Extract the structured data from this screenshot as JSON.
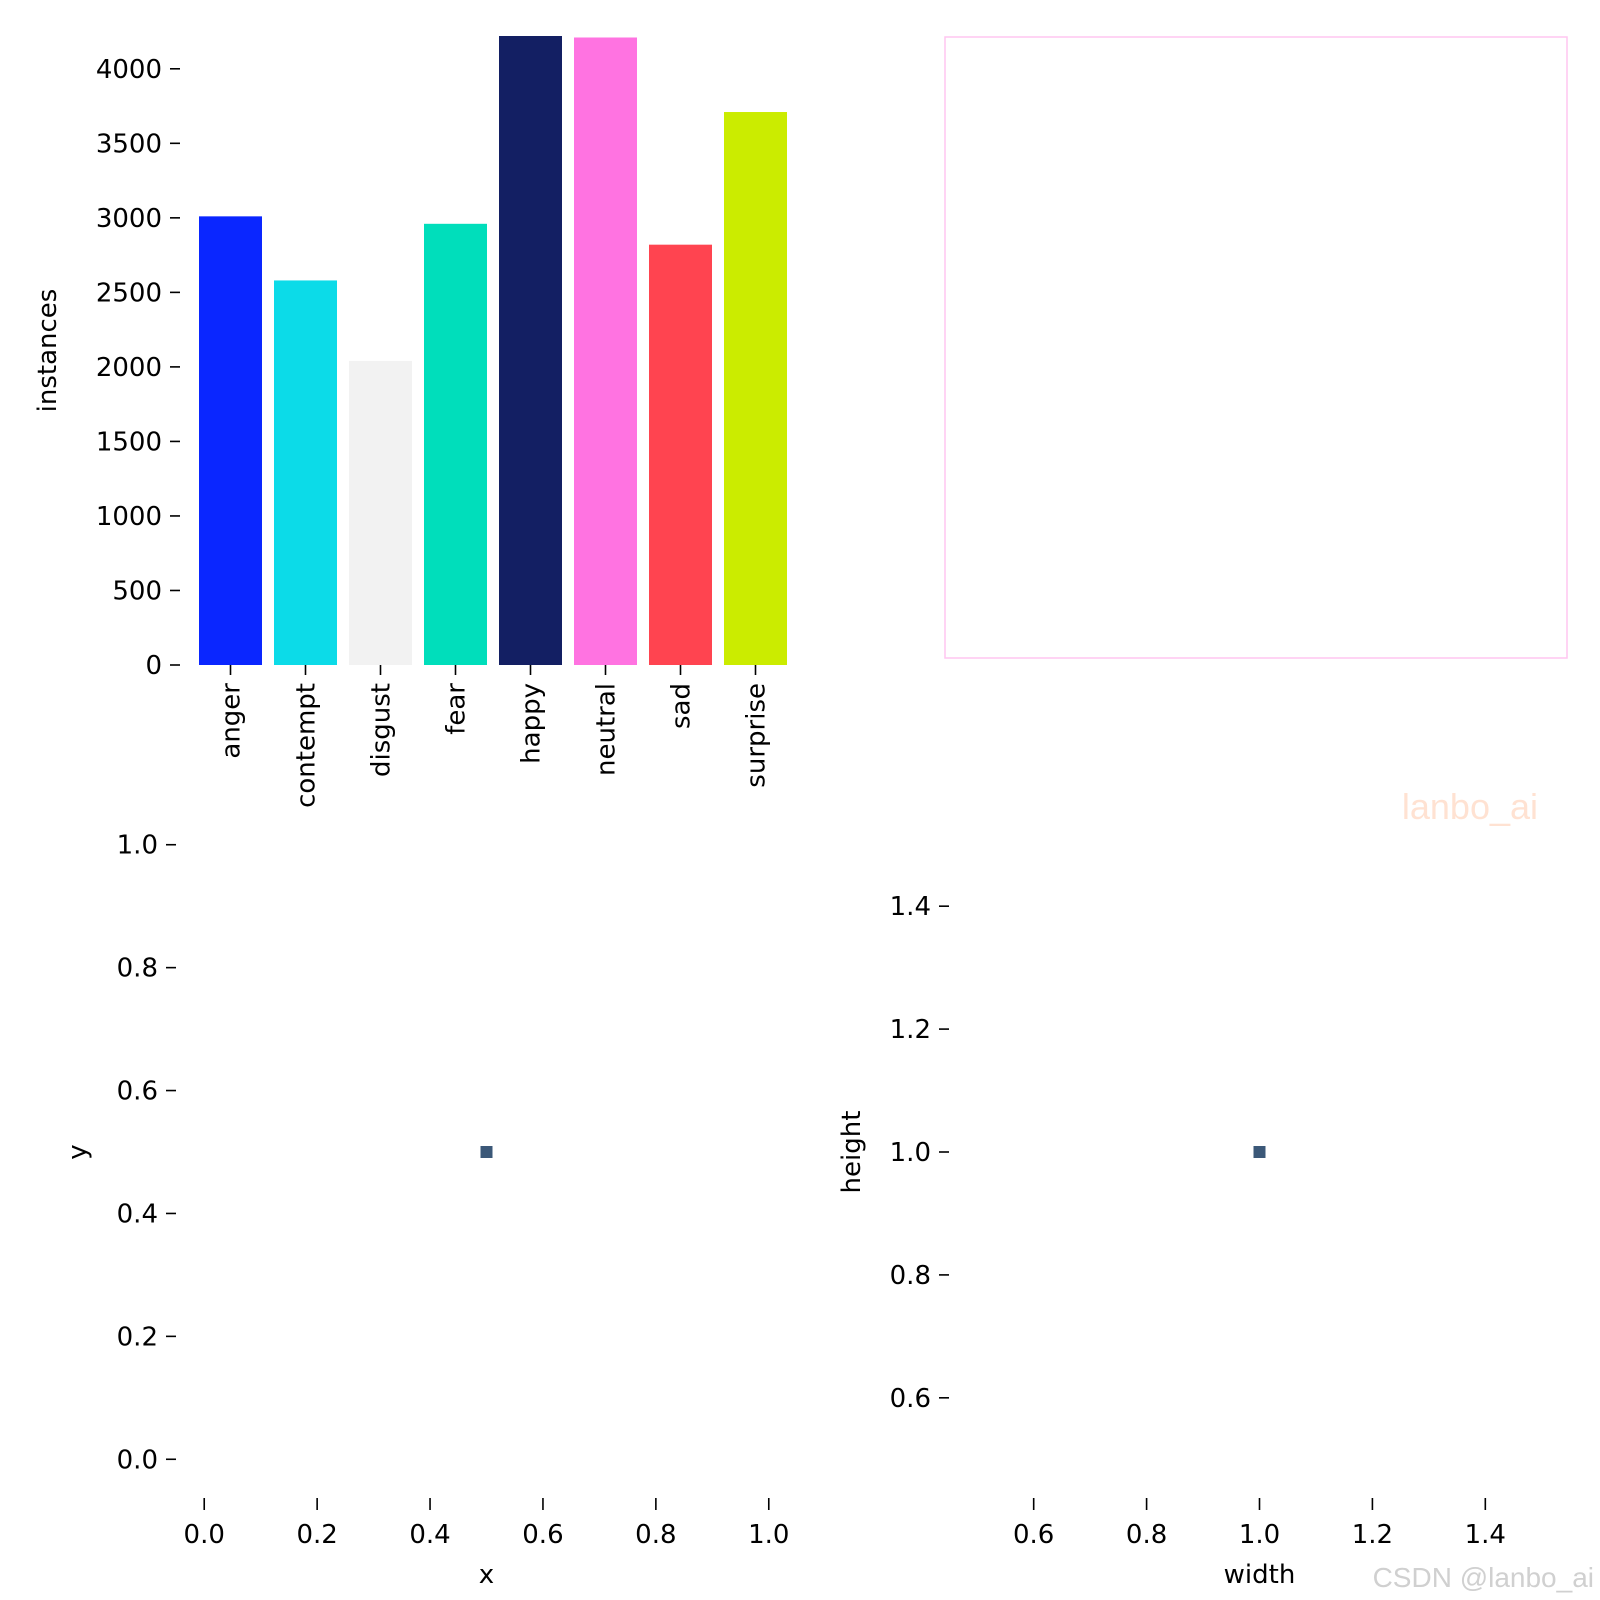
{
  "chart_data": [
    {
      "type": "bar",
      "categories": [
        "anger",
        "contempt",
        "disgust",
        "fear",
        "happy",
        "neutral",
        "sad",
        "surprise"
      ],
      "values": [
        3010,
        2580,
        2040,
        2960,
        4220,
        4210,
        2820,
        3710
      ],
      "colors": [
        "#0a26ff",
        "#0cdbe8",
        "#f2f2f2",
        "#00debb",
        "#131f63",
        "#ff73e1",
        "#ff4450",
        "#cbec00"
      ],
      "xlabel": "",
      "ylabel": "instances",
      "ylim": [
        0,
        4220
      ],
      "yticks": [
        "0",
        "500",
        "1000",
        "1500",
        "2000",
        "2500",
        "3000",
        "3500",
        "4000"
      ],
      "grid": false
    },
    {
      "type": "image",
      "note_border_color": "#ffc6f0"
    },
    {
      "type": "heatmap",
      "points": [
        {
          "x": 0.5,
          "y": 0.5
        }
      ],
      "xlabel": "x",
      "ylabel": "y",
      "xlim": [
        -0.05,
        1.05
      ],
      "ylim": [
        -0.05,
        1.05
      ],
      "xticks": [
        "0.0",
        "0.2",
        "0.4",
        "0.6",
        "0.8",
        "1.0"
      ],
      "yticks": [
        "0.0",
        "0.2",
        "0.4",
        "0.6",
        "0.8",
        "1.0"
      ],
      "cell_color": "#3b5878",
      "grid": false
    },
    {
      "type": "heatmap",
      "points": [
        {
          "x": 1.0,
          "y": 1.0
        }
      ],
      "xlabel": "width",
      "ylabel": "height",
      "xlim": [
        0.45,
        1.55
      ],
      "ylim": [
        0.45,
        1.55
      ],
      "xticks": [
        "0.6",
        "0.8",
        "1.0",
        "1.2",
        "1.4"
      ],
      "yticks": [
        "0.6",
        "0.8",
        "1.0",
        "1.2",
        "1.4"
      ],
      "cell_color": "#3b5878",
      "grid": false
    }
  ],
  "watermarks": {
    "inner": "lanbo_ai",
    "corner": "CSDN @lanbo_ai"
  }
}
